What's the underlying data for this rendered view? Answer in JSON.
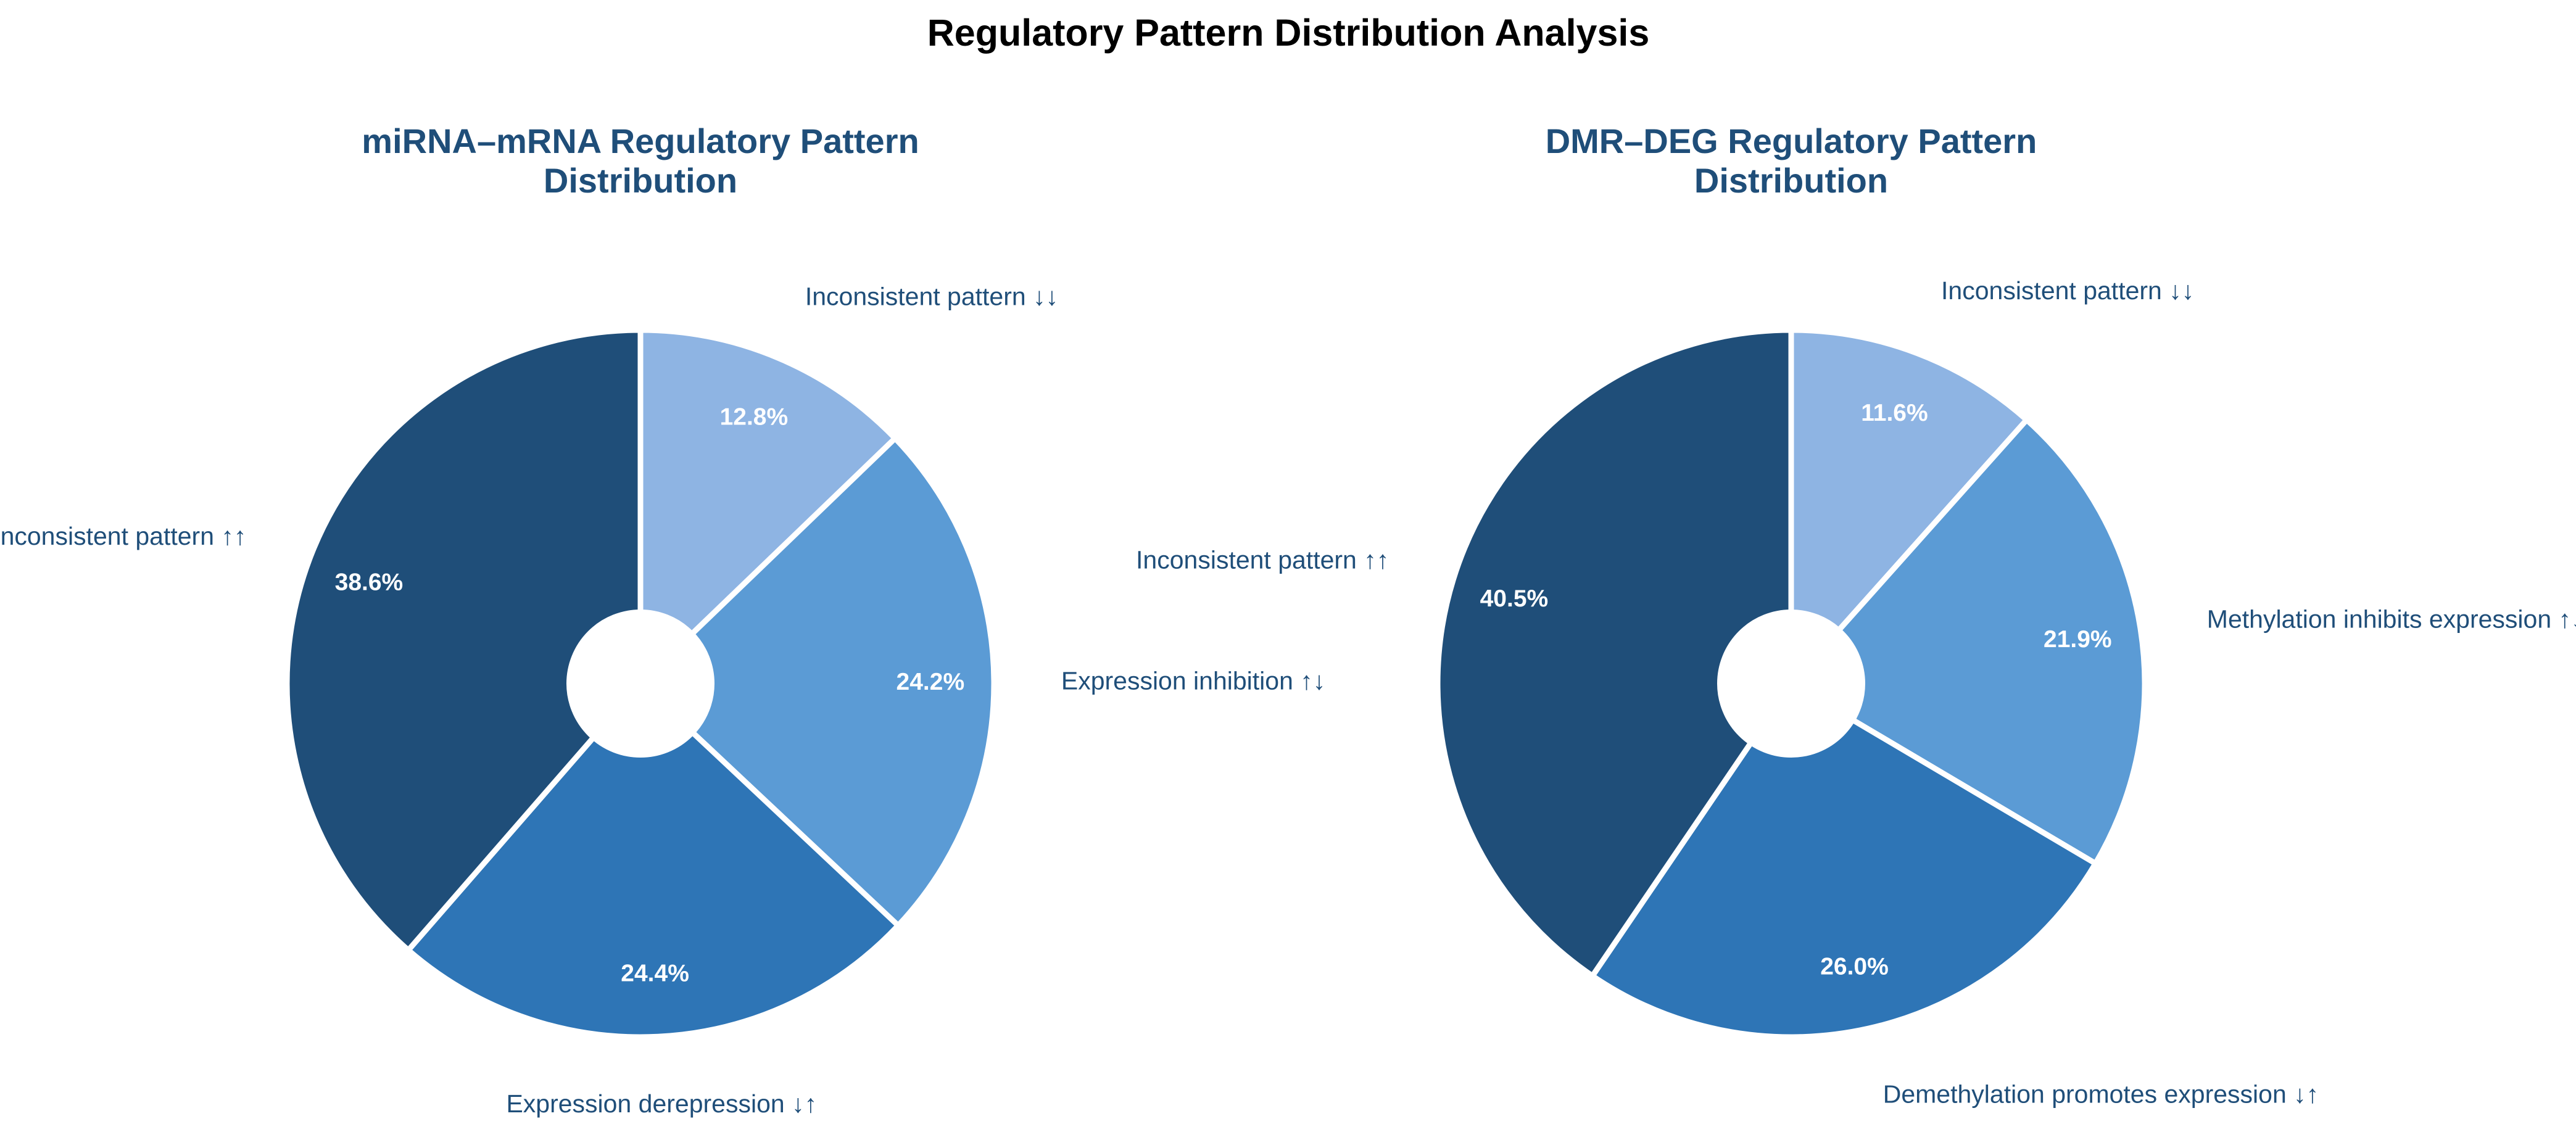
{
  "figure_title": "Regulatory Pattern Distribution Analysis",
  "colors": {
    "title": "#1f4e79",
    "label": "#1f4e79",
    "percent": "#ffffff",
    "wedge_edge": "#ffffff",
    "slice_dark": "#1f4e79",
    "slice_mid": "#2e75b6",
    "slice_light": "#5b9bd5",
    "slice_pale": "#8eb4e3"
  },
  "chart_data": [
    {
      "type": "pie",
      "title": [
        "miRNA–mRNA Regulatory Pattern",
        "Distribution"
      ],
      "start": "12 o'clock",
      "direction": "clockwise",
      "slices": [
        {
          "label": "Inconsistent pattern ↓↓",
          "value": 12.8,
          "pct_label": "12.8%",
          "color": "#8eb4e3"
        },
        {
          "label": "Expression inhibition ↑↓",
          "value": 24.2,
          "pct_label": "24.2%",
          "color": "#5b9bd5"
        },
        {
          "label": "Expression derepression ↓↑",
          "value": 24.4,
          "pct_label": "24.4%",
          "color": "#2e75b6"
        },
        {
          "label": "Inconsistent pattern ↑↑",
          "value": 38.6,
          "pct_label": "38.6%",
          "color": "#1f4e79"
        }
      ]
    },
    {
      "type": "pie",
      "title": [
        "DMR–DEG Regulatory Pattern",
        "Distribution"
      ],
      "start": "12 o'clock",
      "direction": "clockwise",
      "slices": [
        {
          "label": "Inconsistent pattern ↓↓",
          "value": 11.6,
          "pct_label": "11.6%",
          "color": "#8eb4e3"
        },
        {
          "label": "Methylation inhibits expression ↑↓",
          "value": 21.9,
          "pct_label": "21.9%",
          "color": "#5b9bd5"
        },
        {
          "label": "Demethylation promotes expression ↓↑",
          "value": 26.0,
          "pct_label": "26.0%",
          "color": "#2e75b6"
        },
        {
          "label": "Inconsistent pattern ↑↑",
          "value": 40.5,
          "pct_label": "40.5%",
          "color": "#1f4e79"
        }
      ]
    }
  ]
}
